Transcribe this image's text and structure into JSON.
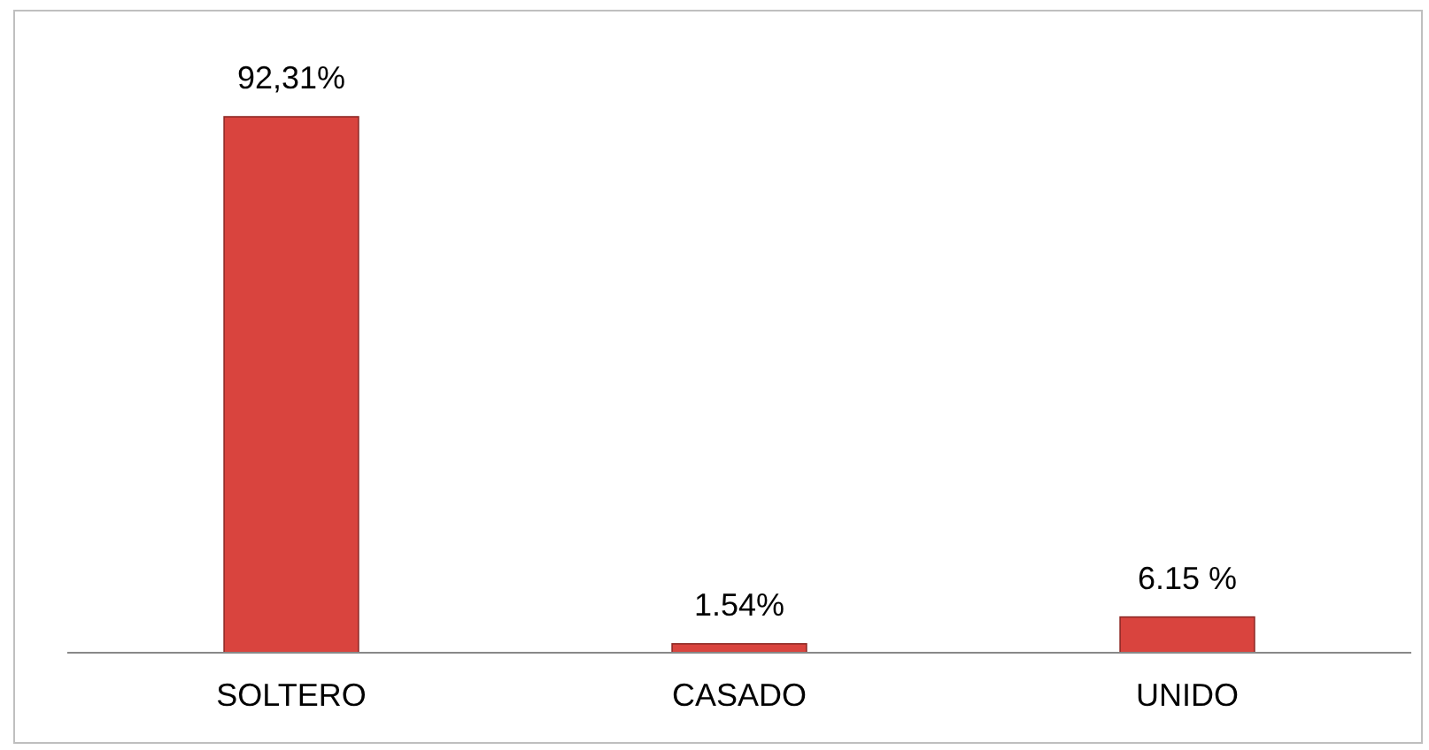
{
  "chart_data": {
    "type": "bar",
    "categories": [
      "SOLTERO",
      "CASADO",
      "UNIDO"
    ],
    "values": [
      92.31,
      1.54,
      6.15
    ],
    "value_labels": [
      "92,31%",
      "1.54%",
      "6.15 %"
    ],
    "color": "#d9443e"
  }
}
